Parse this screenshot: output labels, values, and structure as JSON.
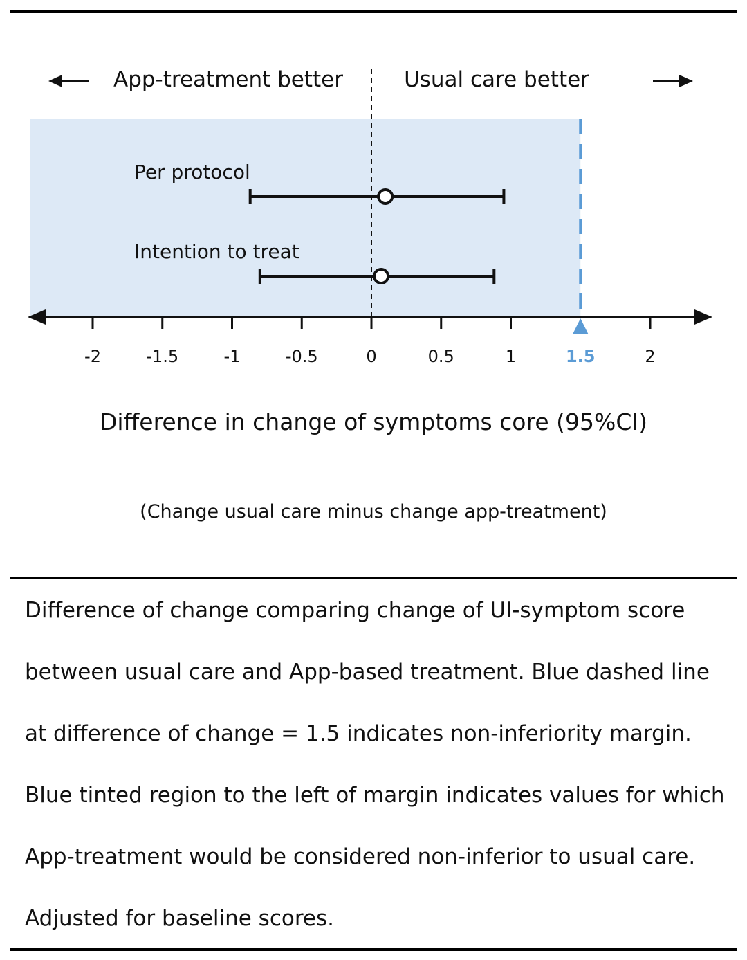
{
  "chart_data": {
    "type": "forest",
    "header_left": "App-treatment better",
    "header_right": "Usual care better",
    "series": [
      {
        "label": "Per protocol",
        "point": 0.1,
        "lower": -0.87,
        "upper": 0.95
      },
      {
        "label": "Intention to treat",
        "point": 0.07,
        "lower": -0.8,
        "upper": 0.88
      }
    ],
    "xlim": [
      -2.45,
      2.45
    ],
    "ticks": [
      -2,
      -1.5,
      -1,
      -0.5,
      0,
      0.5,
      1,
      1.5,
      2
    ],
    "tick_labels": [
      "-2",
      "-1.5",
      "-1",
      "-0.5",
      "0",
      "0.5",
      "1",
      "1.5",
      "2"
    ],
    "reference_line": 0,
    "margin": 1.5,
    "shaded_region": [
      -2.45,
      1.5
    ],
    "xlabel": "Difference in change of symptoms core (95%CI)",
    "xlabel_note": "(Change usual care minus change app-treatment)",
    "colors": {
      "shade": "#dde9f6",
      "margin": "#5b9bd5",
      "ink": "#111111"
    }
  },
  "caption": "Difference of change comparing change of UI-symptom score between usual care and App-based treatment. Blue dashed line at difference of change = 1.5 indicates non-inferiority margin. Blue tinted region to the left of margin indicates values for which App-treatment would be considered non-inferior to usual care. Adjusted for baseline scores."
}
